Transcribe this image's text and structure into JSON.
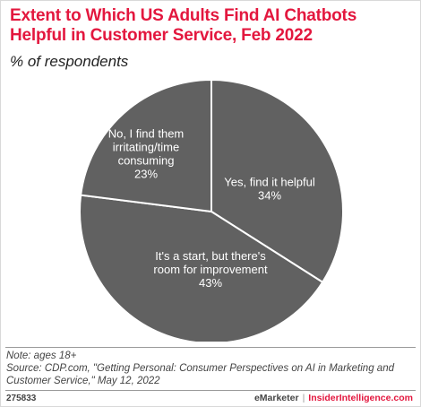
{
  "header": {
    "title_line1": "Extent to Which US Adults Find AI Chatbots",
    "title_line2": "Helpful in Customer Service, Feb 2022",
    "subtitle": "% of respondents"
  },
  "chart_data": {
    "type": "pie",
    "title": "Extent to Which US Adults Find AI Chatbots Helpful in Customer Service, Feb 2022",
    "subtitle": "% of respondents",
    "slices": [
      {
        "label": [
          "Yes, find it helpful"
        ],
        "value": 34,
        "display": "34%"
      },
      {
        "label": [
          "It's a start, but there's",
          "room for improvement"
        ],
        "value": 43,
        "display": "43%"
      },
      {
        "label": [
          "No, I find them",
          "irritating/time",
          "consuming"
        ],
        "value": 23,
        "display": "23%"
      }
    ],
    "colors": {
      "slice_fill": "#616161",
      "slice_border": "#ffffff",
      "label_text": "#ffffff"
    }
  },
  "notes": {
    "note": "Note: ages 18+",
    "source_line1": "Source: CDP.com, \"Getting Personal: Consumer Perspectives on AI in Marketing and",
    "source_line2": "Customer Service,\" May 12, 2022"
  },
  "footer": {
    "chart_id": "275833",
    "brand": "eMarketer",
    "separator": "|",
    "site": "InsiderIntelligence.com"
  },
  "colors": {
    "title": "#e3173e",
    "text": "#222222",
    "background": "#ffffff"
  }
}
